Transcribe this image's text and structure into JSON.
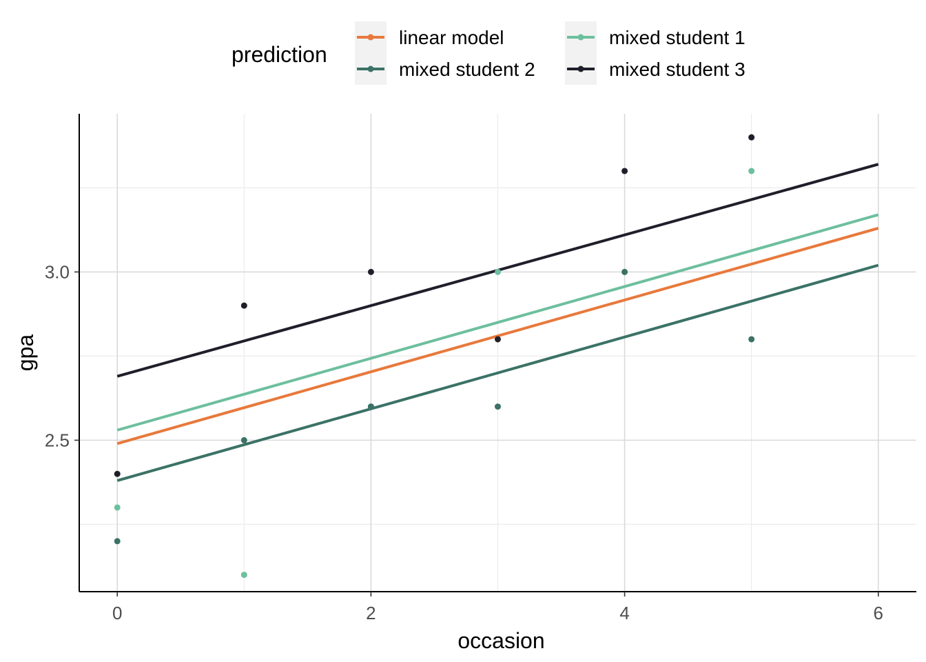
{
  "chart_data": {
    "type": "line",
    "xlabel": "occasion",
    "ylabel": "gpa",
    "xlim": [
      -0.3,
      6.3
    ],
    "ylim": [
      2.05,
      3.47
    ],
    "x_ticks": [
      0,
      2,
      4,
      6
    ],
    "x_tick_labels": [
      "0",
      "2",
      "4",
      "6"
    ],
    "y_ticks": [
      2.5,
      3.0
    ],
    "y_tick_labels": [
      "2.5",
      "3.0"
    ],
    "x_minor_gridlines": [
      1,
      3,
      5
    ],
    "y_minor_gridlines": [
      2.25,
      2.75,
      3.25
    ],
    "grid": true,
    "legend": {
      "title": "prediction",
      "position": "top"
    },
    "series": [
      {
        "name": "linear model",
        "color": "#e8793c",
        "line": {
          "x": [
            0,
            6
          ],
          "y": [
            2.49,
            3.13
          ]
        },
        "points": {
          "x": [],
          "y": []
        }
      },
      {
        "name": "mixed student 1",
        "color": "#6dbf9e",
        "line": {
          "x": [
            0,
            6
          ],
          "y": [
            2.53,
            3.17
          ]
        },
        "points": {
          "x": [
            0,
            1,
            2,
            3,
            4,
            5
          ],
          "y": [
            2.3,
            2.1,
            2.6,
            3.0,
            3.0,
            3.3
          ]
        }
      },
      {
        "name": "mixed student 2",
        "color": "#3b7266",
        "line": {
          "x": [
            0,
            6
          ],
          "y": [
            2.38,
            3.02
          ]
        },
        "points": {
          "x": [
            0,
            1,
            2,
            3,
            4,
            5
          ],
          "y": [
            2.2,
            2.5,
            2.6,
            2.6,
            3.0,
            2.8
          ]
        }
      },
      {
        "name": "mixed student 3",
        "color": "#1f1f2b",
        "line": {
          "x": [
            0,
            6
          ],
          "y": [
            2.69,
            3.32
          ]
        },
        "points": {
          "x": [
            0,
            1,
            2,
            3,
            4,
            5
          ],
          "y": [
            2.4,
            2.9,
            3.0,
            2.8,
            3.3,
            3.4
          ]
        }
      }
    ]
  }
}
